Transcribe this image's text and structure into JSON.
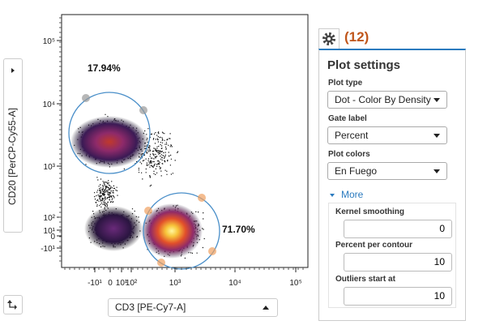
{
  "left_panel": {
    "axis_label": "CD20 [PerCP-Cy55-A]"
  },
  "plot": {
    "y_ticks": [
      "10⁵",
      "10⁴",
      "10³",
      "10²",
      "10¹",
      "0",
      "-10¹"
    ],
    "x_ticks": [
      "-10¹",
      "0",
      "10¹",
      "10²",
      "10³",
      "10⁴",
      "10⁵"
    ],
    "x_axis_label": "CD3 [PE-Cy7-A]",
    "gates": [
      {
        "label": "17.94%"
      },
      {
        "label": "71.70%"
      }
    ]
  },
  "settings": {
    "badge": "(12)",
    "title": "Plot settings",
    "fields": [
      {
        "label": "Plot type",
        "value": "Dot - Color By Density"
      },
      {
        "label": "Gate label",
        "value": "Percent"
      },
      {
        "label": "Plot colors",
        "value": "En Fuego"
      }
    ],
    "more": "More",
    "advanced": [
      {
        "label": "Kernel smoothing",
        "value": 0
      },
      {
        "label": "Percent per contour",
        "value": 10
      },
      {
        "label": "Outliers start at",
        "value": 10
      }
    ]
  }
}
